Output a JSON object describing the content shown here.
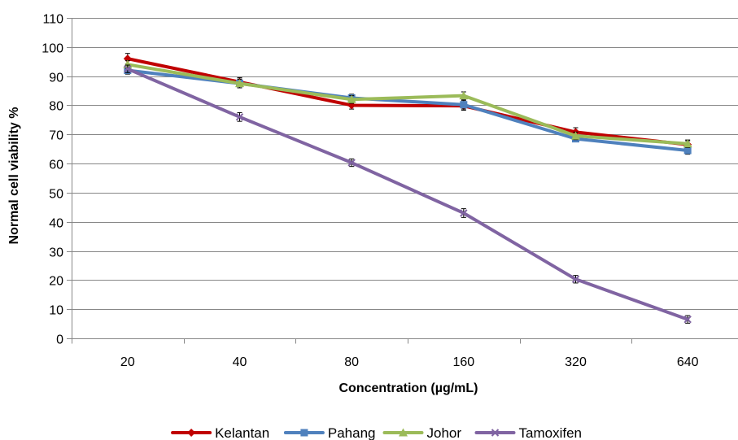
{
  "chart_data": {
    "type": "line",
    "categories": [
      "20",
      "40",
      "80",
      "160",
      "320",
      "640"
    ],
    "title": "",
    "xlabel": "Concentration (µg/mL)",
    "ylabel": "Normal cell viability %",
    "ylim": [
      0,
      110
    ],
    "yticks": [
      0,
      10,
      20,
      30,
      40,
      50,
      60,
      70,
      80,
      90,
      100,
      110
    ],
    "grid": true,
    "legend_position": "bottom",
    "series": [
      {
        "name": "Kelantan",
        "color": "#C00000",
        "marker": "diamond",
        "values": [
          96,
          88,
          80,
          79.8,
          70.8,
          66.5
        ],
        "errors": [
          1.8,
          1.5,
          1.3,
          1.5,
          1.5,
          1.3
        ]
      },
      {
        "name": "Pahang",
        "color": "#4F81BD",
        "marker": "square",
        "values": [
          92,
          87.5,
          82.5,
          80.2,
          68.5,
          64.5
        ],
        "errors": [
          1.3,
          1.5,
          1.3,
          1.5,
          1.0,
          1.3
        ]
      },
      {
        "name": "Johor",
        "color": "#9BBB59",
        "marker": "triangle",
        "values": [
          94,
          87.5,
          82,
          83.3,
          69.5,
          66.8
        ],
        "errors": [
          1.3,
          1.5,
          1.3,
          1.3,
          1.3,
          1.3
        ]
      },
      {
        "name": "Tamoxifen",
        "color": "#8064A2",
        "marker": "x",
        "values": [
          92.5,
          76,
          60.3,
          43,
          20.3,
          6.5
        ],
        "errors": [
          1.3,
          1.5,
          1.3,
          1.5,
          1.3,
          1.3
        ]
      }
    ]
  }
}
